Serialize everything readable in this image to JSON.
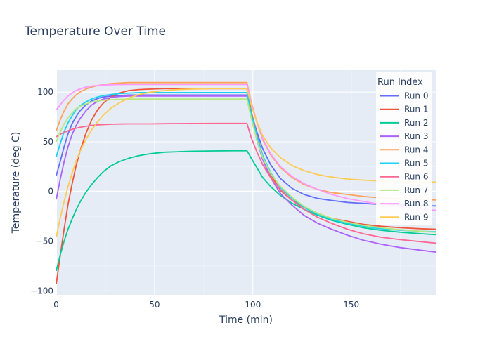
{
  "chart_data": {
    "type": "line",
    "title": "Temperature Over Time",
    "xlabel": "Time (min)",
    "ylabel": "Temperature (deg C)",
    "xlim": [
      0,
      193
    ],
    "ylim": [
      -104,
      122
    ],
    "xticks": [
      0,
      50,
      100,
      150
    ],
    "yticks": [
      -100,
      -50,
      0,
      50,
      100
    ],
    "grid": true,
    "plot_bg": "#e5ecf6",
    "legend": {
      "title": "Run Index",
      "placement": "top-right"
    },
    "x": [
      0,
      2,
      4,
      6,
      8,
      10,
      12,
      15,
      18,
      21,
      24,
      28,
      32,
      37,
      42,
      48,
      55,
      62,
      70,
      80,
      90,
      97,
      99,
      102,
      105,
      109,
      114,
      120,
      126,
      133,
      140,
      148,
      156,
      165,
      175,
      185,
      193
    ],
    "series": [
      {
        "name": "Run 0",
        "color": "#636efa",
        "values": [
          16,
          30,
          45,
          58,
          68,
          75,
          81,
          87,
          91,
          93.5,
          95,
          96,
          96.5,
          97,
          97,
          97,
          97,
          97,
          97,
          97,
          97,
          97,
          80,
          60,
          43,
          27,
          13,
          3,
          -3,
          -7,
          -9,
          -11,
          -12,
          -13,
          -13.5,
          -14,
          -14.5
        ]
      },
      {
        "name": "Run 1",
        "color": "#ef553b",
        "values": [
          -93,
          -65,
          -38,
          -13,
          7,
          25,
          40,
          58,
          72,
          82,
          89,
          95,
          99,
          101.5,
          102.5,
          103,
          103.5,
          103.5,
          103.5,
          103.5,
          103.5,
          103.5,
          82,
          57,
          36,
          17,
          1,
          -9,
          -16,
          -22,
          -27,
          -30,
          -33,
          -35,
          -36.5,
          -37.5,
          -38
        ]
      },
      {
        "name": "Run 2",
        "color": "#00cc96",
        "values": [
          -80,
          -64,
          -50,
          -38,
          -28,
          -19,
          -11,
          -1,
          7,
          14,
          20,
          26,
          30,
          33.5,
          36,
          38,
          39.5,
          40,
          40.5,
          40.8,
          41,
          41,
          34,
          24,
          14,
          5,
          -4,
          -12,
          -18,
          -24,
          -29,
          -33,
          -36.5,
          -39,
          -41,
          -42.5,
          -43.5
        ]
      },
      {
        "name": "Run 3",
        "color": "#ab63fa",
        "values": [
          -8,
          12,
          30,
          45,
          57,
          66,
          73,
          81,
          87,
          90.5,
          93,
          94.5,
          95.5,
          96,
          96,
          96,
          96,
          96,
          96,
          96,
          96,
          96,
          76,
          52,
          32,
          14,
          -2,
          -14,
          -24,
          -32,
          -38,
          -44,
          -49,
          -53,
          -56.5,
          -59,
          -61
        ]
      },
      {
        "name": "Run 4",
        "color": "#ffa15a",
        "values": [
          61,
          72,
          81,
          88,
          93,
          97,
          100,
          103,
          105,
          106.5,
          107.5,
          108.5,
          109,
          109.5,
          109.5,
          109.5,
          109.5,
          109.5,
          109.5,
          109.5,
          109.5,
          109.5,
          91,
          70,
          52,
          37,
          24,
          14,
          7,
          2,
          -1,
          -3,
          -5,
          -6.5,
          -7.5,
          -8,
          -8.5
        ]
      },
      {
        "name": "Run 5",
        "color": "#19d3f3",
        "values": [
          35,
          48,
          60,
          69,
          76,
          82,
          86,
          90,
          93,
          95,
          96.5,
          97.5,
          98.5,
          99,
          99.5,
          99.5,
          99.5,
          99.5,
          99.5,
          99.5,
          99.5,
          99.5,
          80,
          56,
          36,
          19,
          4,
          -7,
          -16,
          -23,
          -28,
          -32,
          -35,
          -37.5,
          -39,
          -40,
          -40.5
        ]
      },
      {
        "name": "Run 6",
        "color": "#ff6692",
        "values": [
          55,
          57.5,
          59.5,
          61,
          62.5,
          63.5,
          64.5,
          65.5,
          66.5,
          67,
          67.3,
          67.6,
          67.8,
          68,
          68,
          68,
          68.2,
          68.3,
          68.4,
          68.5,
          68.5,
          68.5,
          55,
          40,
          27,
          14,
          2,
          -9,
          -18,
          -26,
          -32,
          -38,
          -42.5,
          -46,
          -48.5,
          -50.5,
          -52
        ]
      },
      {
        "name": "Run 7",
        "color": "#b6e880",
        "values": [
          50,
          60,
          68,
          74,
          79,
          83,
          85.5,
          88,
          90,
          91,
          91.8,
          92.3,
          92.6,
          92.8,
          93,
          93,
          93,
          93,
          93,
          93,
          93,
          93,
          75,
          52,
          34,
          18,
          5,
          -6,
          -15,
          -22,
          -27,
          -31,
          -34,
          -36.5,
          -38.5,
          -40,
          -41
        ]
      },
      {
        "name": "Run 8",
        "color": "#ff97ff",
        "values": [
          82,
          87,
          92,
          96,
          99,
          101.5,
          103,
          105,
          106,
          106.5,
          107,
          107.3,
          107.5,
          107.6,
          107.6,
          107.6,
          107.6,
          107.6,
          107.6,
          107.6,
          107.6,
          107.6,
          90,
          70,
          53,
          38,
          25,
          15,
          8,
          2,
          -3,
          -7,
          -10,
          -13,
          -15.5,
          -17.5,
          -19
        ]
      },
      {
        "name": "Run 9",
        "color": "#fecb52",
        "values": [
          -46,
          -27,
          -10,
          5,
          18,
          30,
          40,
          52,
          62,
          70,
          77,
          84,
          89,
          94,
          97.5,
          100,
          101.5,
          102.5,
          103,
          103.5,
          103.5,
          103.5,
          88,
          70,
          56,
          44,
          34,
          26,
          21,
          17,
          14.5,
          12.5,
          11.5,
          10.5,
          10,
          9.5,
          9.5
        ]
      }
    ]
  }
}
